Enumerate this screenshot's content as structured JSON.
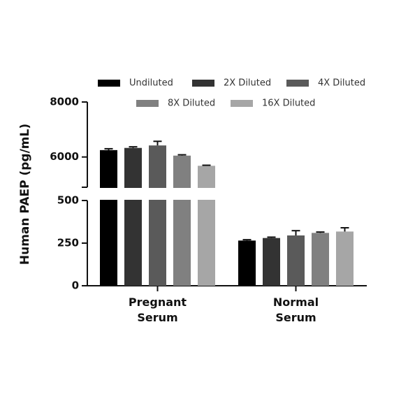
{
  "chart_data": {
    "type": "bar",
    "y_axis_label": "Human PAEP (pg/mL)",
    "categories": [
      "Pregnant Serum",
      "Normal Serum"
    ],
    "series": [
      {
        "name": "Undiluted",
        "color": "#000000",
        "values": [
          6250,
          265
        ],
        "errors": [
          50,
          5
        ]
      },
      {
        "name": "2X Diluted",
        "color": "#333333",
        "values": [
          6330,
          280
        ],
        "errors": [
          40,
          5
        ]
      },
      {
        "name": "4X Diluted",
        "color": "#5a5a5a",
        "values": [
          6420,
          295
        ],
        "errors": [
          150,
          28
        ]
      },
      {
        "name": "8X Diluted",
        "color": "#808080",
        "values": [
          6050,
          310
        ],
        "errors": [
          30,
          5
        ]
      },
      {
        "name": "16X Diluted",
        "color": "#a6a6a6",
        "values": [
          5680,
          318
        ],
        "errors": [
          20,
          22
        ]
      }
    ],
    "y_segments": [
      {
        "ylim": [
          0,
          500
        ],
        "yticks": [
          0,
          250,
          500
        ]
      },
      {
        "ylim": [
          4900,
          8000
        ],
        "yticks": [
          6000,
          8000
        ]
      }
    ]
  }
}
